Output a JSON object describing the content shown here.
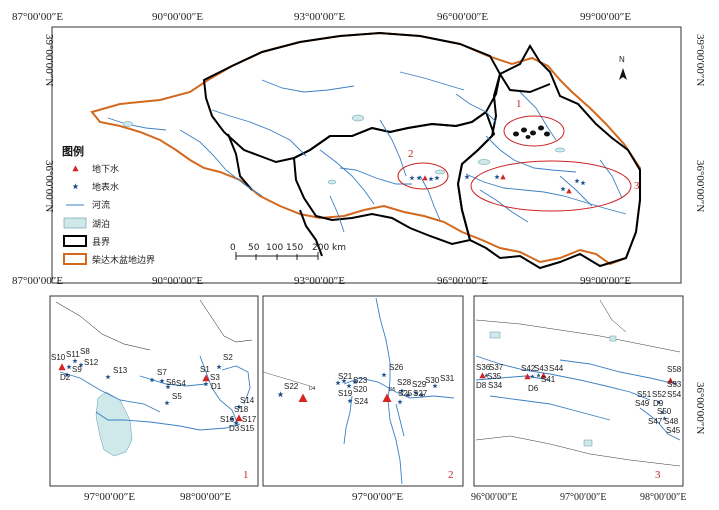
{
  "top_map": {
    "lon_labels": [
      "87°00′00″E",
      "90°00′00″E",
      "93°00′00″E",
      "96°00′00″E",
      "99°00′00″E"
    ],
    "lat_labels": [
      "39°00′00″N",
      "36°00′00″N"
    ],
    "zones": [
      "1",
      "2",
      "3"
    ],
    "north": "N",
    "scale_ticks": [
      "0",
      "50",
      "100",
      "150",
      "200 km"
    ]
  },
  "legend": {
    "title": "图例",
    "items": [
      {
        "label": "地下水",
        "symbol": "triangle",
        "color": "#d42424"
      },
      {
        "label": "地表水",
        "symbol": "star",
        "color": "#1e4f8a"
      },
      {
        "label": "河流",
        "symbol": "line",
        "color": "#3a7fc4"
      },
      {
        "label": "湖泊",
        "symbol": "fill",
        "color": "#cfe8ea"
      },
      {
        "label": "县界",
        "symbol": "thick-line",
        "color": "#000000"
      },
      {
        "label": "柴达木盆地边界",
        "symbol": "orange-line",
        "color": "#d2691e"
      }
    ]
  },
  "inset1": {
    "lon_labels": [
      "97°00′00″E",
      "98°00′00″E"
    ],
    "number": "1",
    "labels": [
      "S10",
      "S11",
      "S8",
      "S9",
      "S12",
      "D2",
      "S13",
      "S7",
      "S6",
      "S4",
      "S5",
      "S1",
      "S2",
      "S3",
      "D1",
      "S14",
      "S16",
      "S18",
      "S17",
      "D3",
      "S15"
    ]
  },
  "inset2": {
    "lon_labels": [
      "97°00′00″E"
    ],
    "number": "2",
    "labels": [
      "S22",
      "D4",
      "S21",
      "S23",
      "S19",
      "S20",
      "S24",
      "S26",
      "S28",
      "S29",
      "S27",
      "S30",
      "S31",
      "D5",
      "S25"
    ]
  },
  "inset3": {
    "lon_labels": [
      "96°00′00″E",
      "97°00′00″E",
      "98°00′00″E"
    ],
    "lat_label": "36°00′00″N",
    "number": "3",
    "labels": [
      "S36",
      "S37",
      "S35",
      "D8",
      "S34",
      "S42",
      "S43",
      "S44",
      "S41",
      "D6",
      "S58",
      "S51",
      "S52",
      "S53",
      "S54",
      "S49",
      "D9",
      "S50",
      "S47",
      "S48",
      "S45"
    ]
  },
  "colors": {
    "river": "#3a7fc4",
    "lake": "#cfe8ea",
    "county": "#000000",
    "basin": "#d2691e",
    "groundwater": "#d42424",
    "surface": "#1e4f8a",
    "zone_ring": "#cc2222"
  }
}
